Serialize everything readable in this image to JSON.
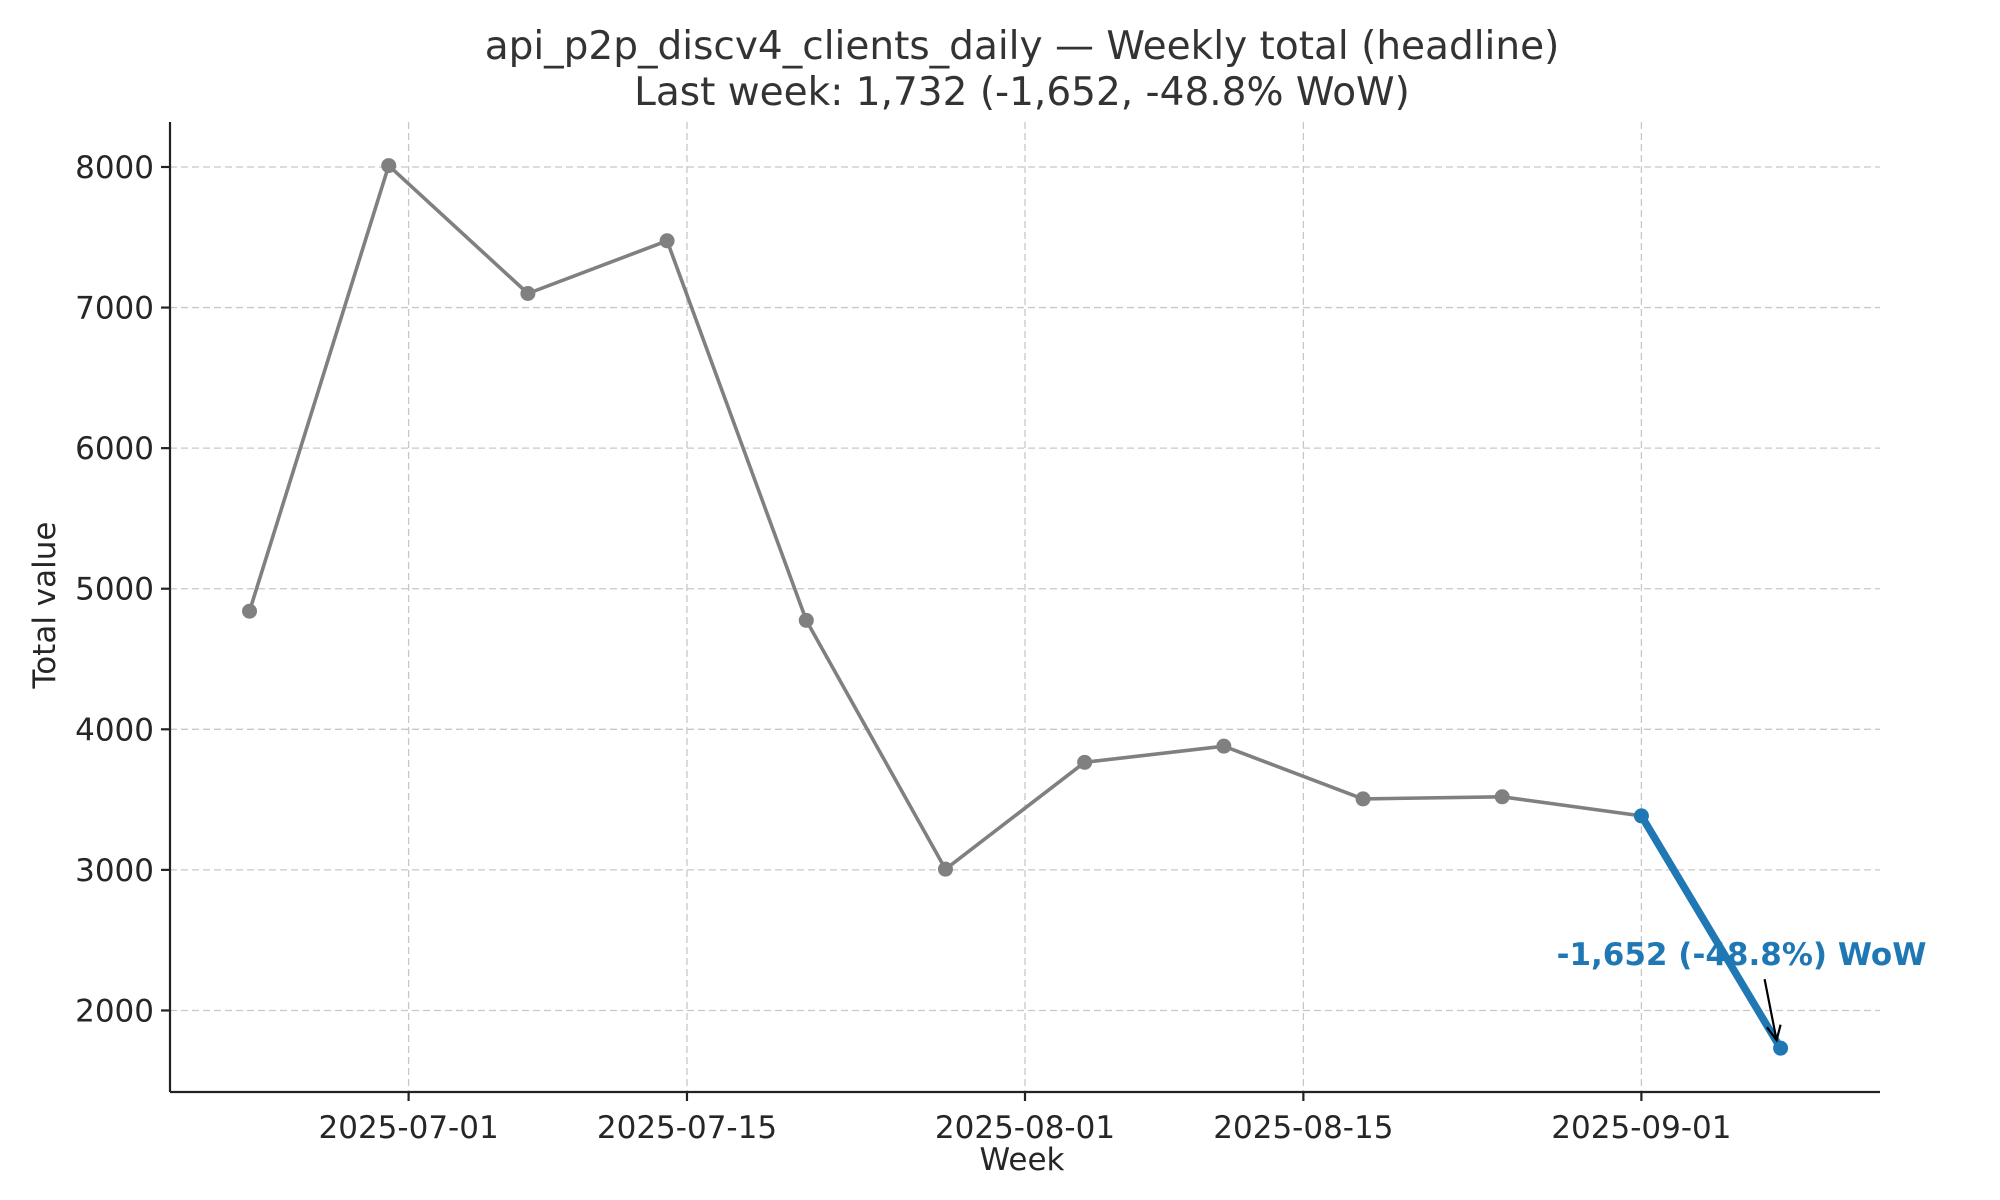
{
  "chart_data": {
    "type": "line",
    "title": "api_p2p_discv4_clients_daily — Weekly total (headline)",
    "subtitle": "Last week: 1,732 (-1,652, -48.8% WoW)",
    "xlabel": "Week",
    "ylabel": "Total value",
    "x": [
      "2025-06-23",
      "2025-06-30",
      "2025-07-07",
      "2025-07-14",
      "2025-07-21",
      "2025-07-28",
      "2025-08-04",
      "2025-08-11",
      "2025-08-18",
      "2025-08-25",
      "2025-09-01",
      "2025-09-08"
    ],
    "series": [
      {
        "values": [
          4840,
          8010,
          7100,
          7475,
          4775,
          3005,
          3765,
          3880,
          3505,
          3520,
          3384,
          1732
        ],
        "color": "#808080",
        "highlight_last_segment_color": "#1f77b4"
      }
    ],
    "xlim": [
      "2025-06-19",
      "2025-09-13"
    ],
    "ylim": [
      1420,
      8320
    ],
    "x_ticks": [
      "2025-07-01",
      "2025-07-15",
      "2025-08-01",
      "2025-08-15",
      "2025-09-01"
    ],
    "y_ticks": [
      2000,
      3000,
      4000,
      5000,
      6000,
      7000,
      8000
    ],
    "grid": true,
    "annotation": {
      "text": "-1,652 (-48.8%) WoW",
      "target_x": "2025-09-08",
      "target_y": 1732,
      "color": "#1f77b4"
    }
  }
}
